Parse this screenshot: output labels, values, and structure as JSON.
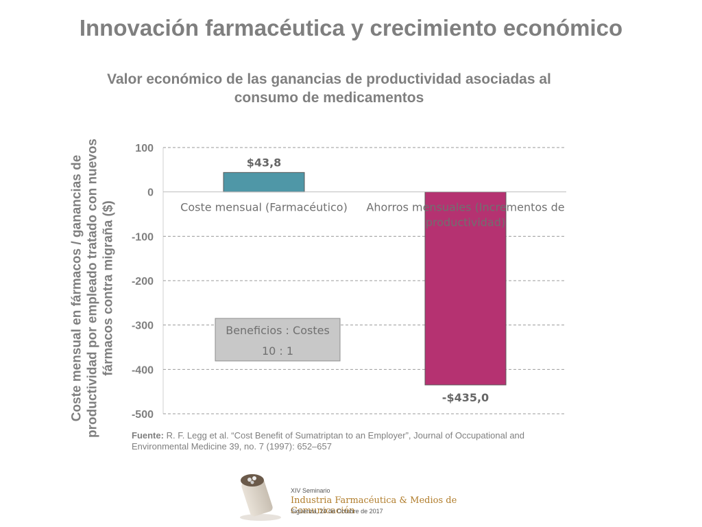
{
  "slide": {
    "title": "Innovación farmacéutica y crecimiento económico"
  },
  "chart_data": {
    "type": "bar",
    "title": "Valor económico de las ganancias de productividad asociadas al consumo de medicamentos",
    "ylabel": "Coste mensual en fármacos / ganancias de productividad por empleado tratado con nuevos fármacos contra migraña ($)",
    "xlabel": "",
    "categories": [
      "Coste mensual (Farmacéutico)",
      "Ahorros mensuales (Incrementos de productividad)"
    ],
    "values": [
      43.8,
      -435.0
    ],
    "data_labels": [
      "$43,8",
      "-$435,0"
    ],
    "colors": [
      "#4f97a7",
      "#b53271"
    ],
    "ylim": [
      -500,
      100
    ],
    "yticks": [
      100,
      0,
      -100,
      -200,
      -300,
      -400,
      -500
    ],
    "grid": true,
    "annotation": {
      "line1": "Beneficios : Costes",
      "line2": "10 : 1"
    }
  },
  "source": {
    "label": "Fuente:",
    "text": "R. F. Legg et al. “Cost Benefit of Sumatriptan to an Employer”, Journal of Occupational and Environmental Medicine 39, no. 7 (1997): 652–657"
  },
  "logo": {
    "line1": "XIV Seminario",
    "line2": "Industria Farmacéutica & Medios de Comunicación",
    "line3": "Sigüenza, 24 de Octubre de 2017"
  }
}
